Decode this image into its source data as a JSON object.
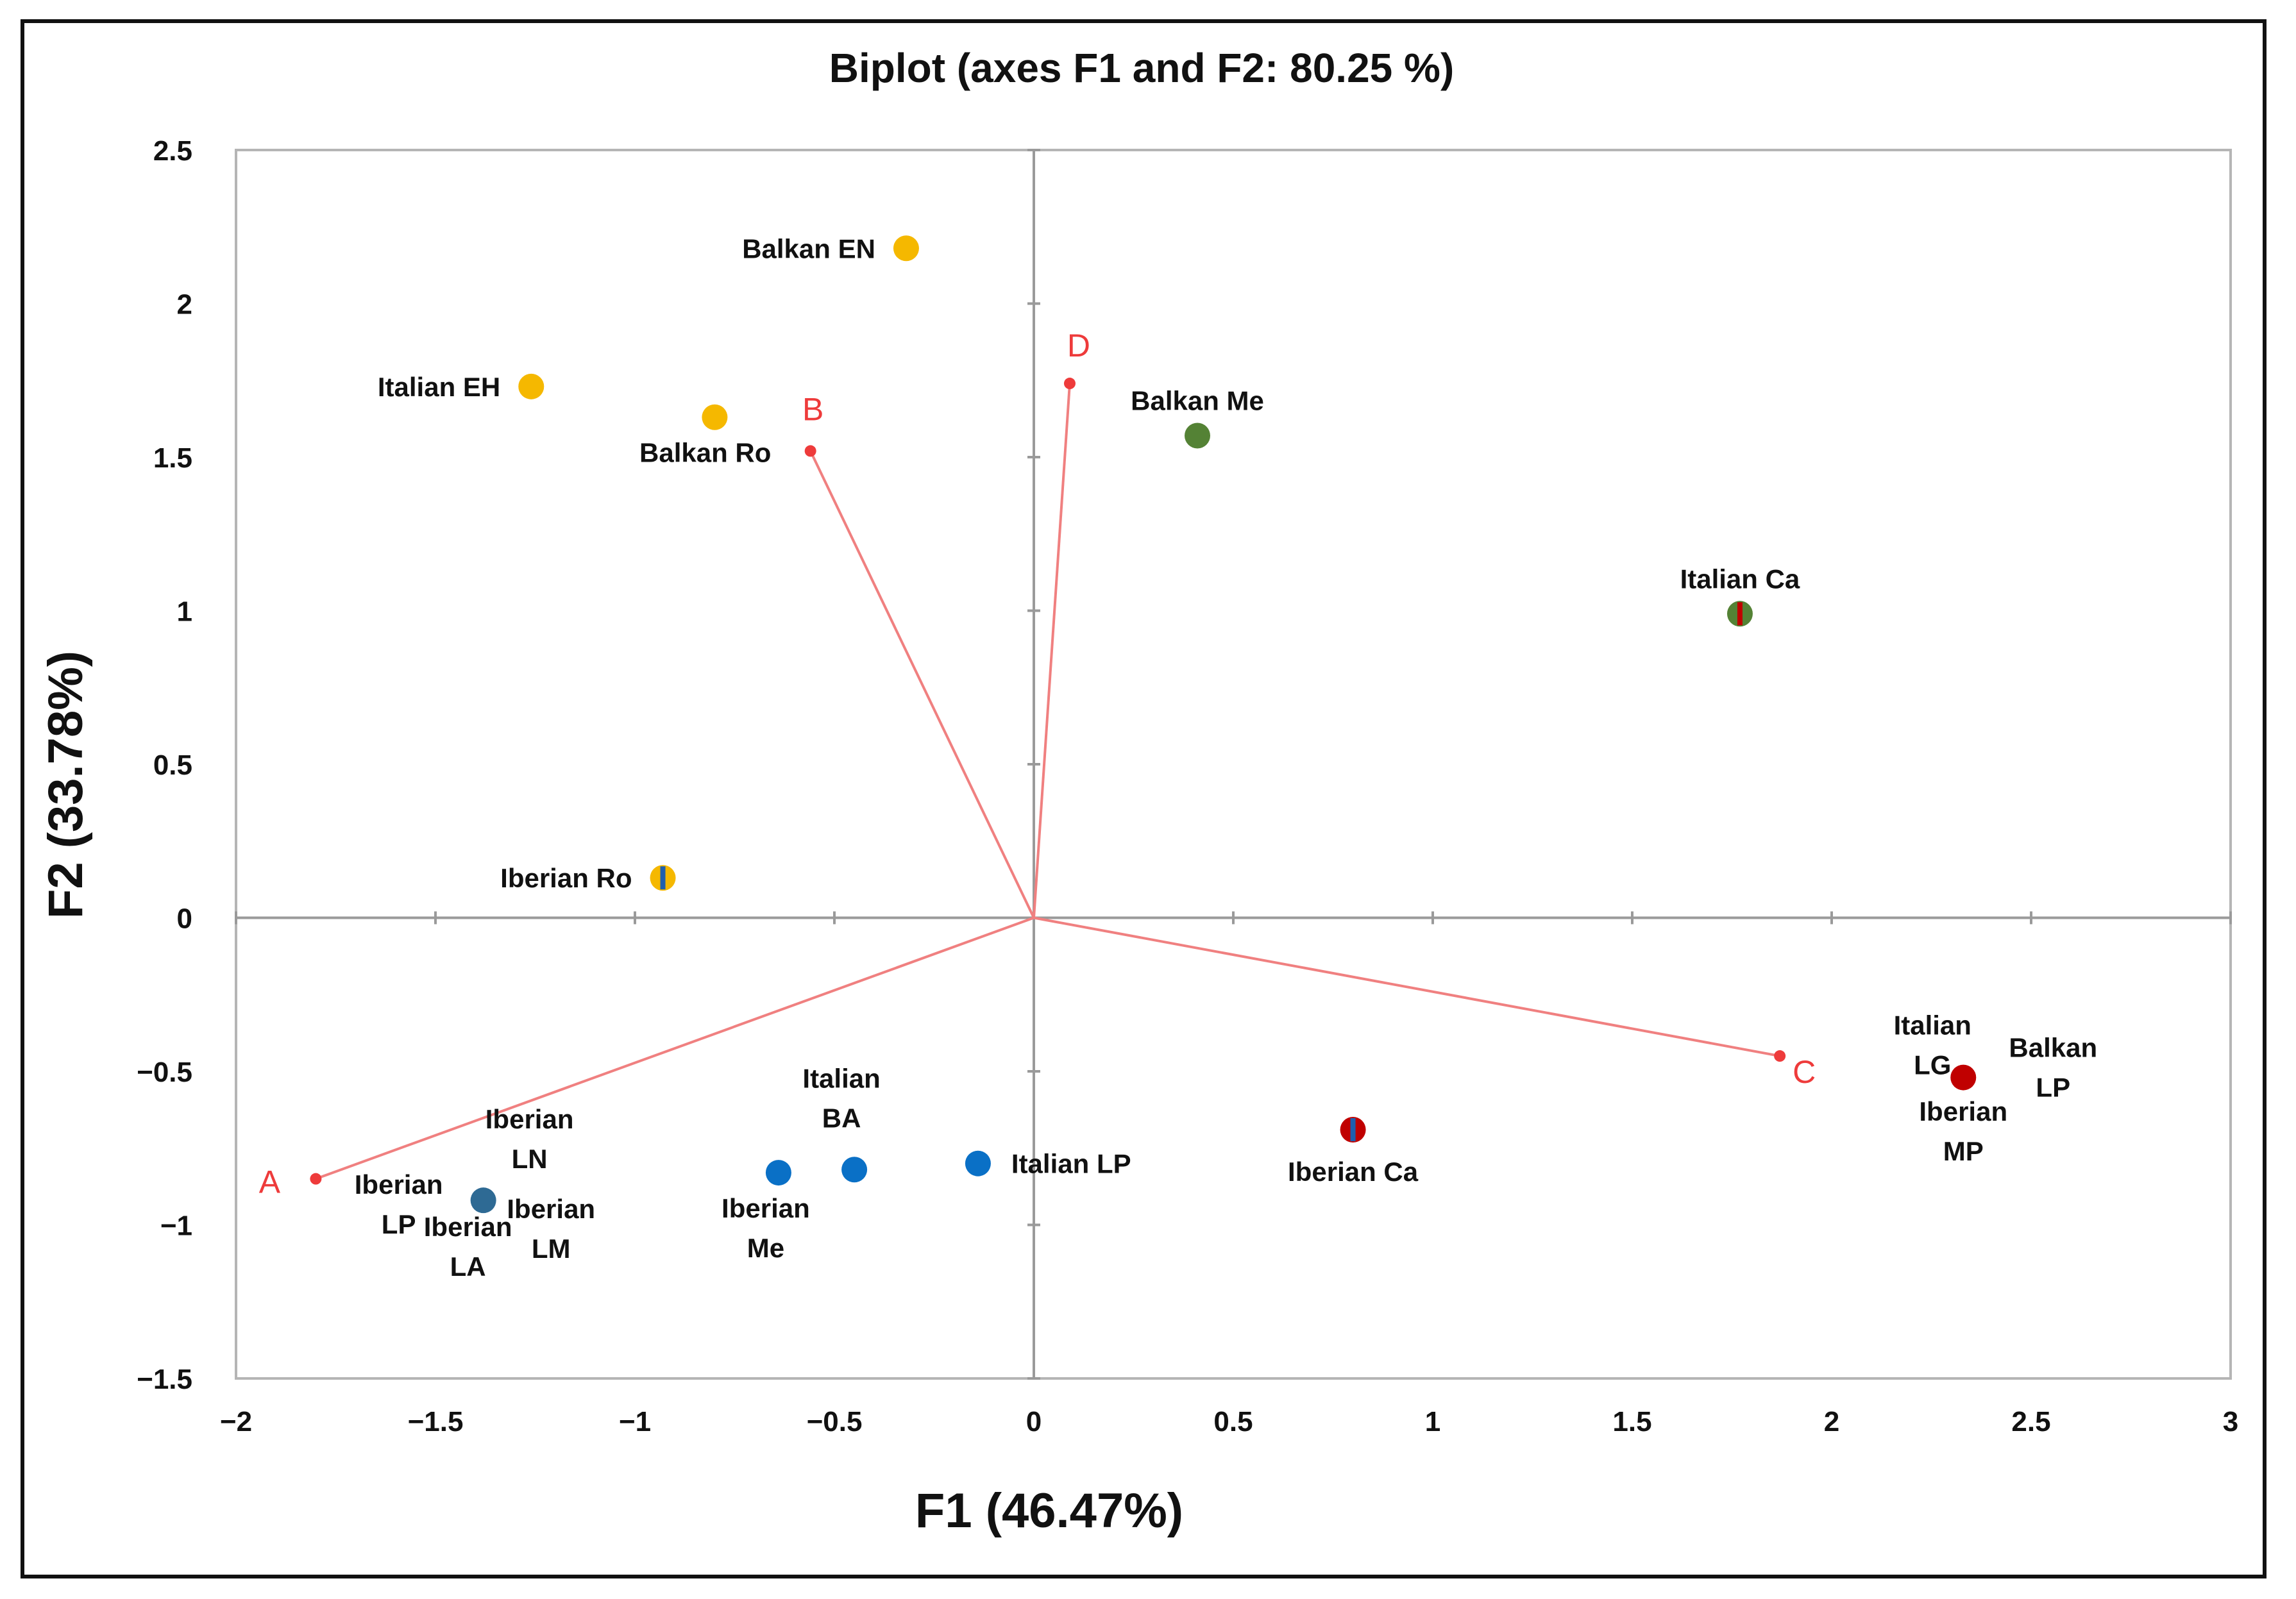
{
  "chart_data": {
    "type": "scatter",
    "title": "Biplot (axes F1 and F2: 80.25 %)",
    "xlabel": "F1 (46.47%)",
    "ylabel": "F2 (33.78%)",
    "xlim": [
      -2,
      3
    ],
    "ylim": [
      -1.5,
      2.5
    ],
    "xticks": [
      -2,
      -1.5,
      -1,
      -0.5,
      0,
      0.5,
      1,
      1.5,
      2,
      2.5,
      3
    ],
    "yticks": [
      -1.5,
      -1,
      -0.5,
      0,
      0.5,
      1,
      1.5,
      2,
      2.5
    ],
    "xtick_labels": [
      "−2",
      "−1.5",
      "−1",
      "−0.5",
      "0",
      "0.5",
      "1",
      "1.5",
      "2",
      "2.5",
      "3"
    ],
    "ytick_labels": [
      "−1.5",
      "−1",
      "−0.5",
      "0",
      "0.5",
      "1",
      "1.5",
      "2",
      "2.5"
    ],
    "grid": false,
    "vectors": [
      {
        "name": "A",
        "x": -1.8,
        "y": -0.85,
        "color": "#ee3b3b",
        "label_dir": "left"
      },
      {
        "name": "B",
        "x": -0.56,
        "y": 1.52,
        "color": "#ee3b3b",
        "label_dir": "up"
      },
      {
        "name": "C",
        "x": 1.87,
        "y": -0.45,
        "color": "#ee3b3b",
        "label_dir": "downright"
      },
      {
        "name": "D",
        "x": 0.09,
        "y": 1.74,
        "color": "#ee3b3b",
        "label_dir": "upright"
      }
    ],
    "points": [
      {
        "label": [
          "Balkan EN"
        ],
        "x": -0.32,
        "y": 2.18,
        "color": "#f5b800",
        "color2": null,
        "label_dir": "left"
      },
      {
        "label": [
          "Italian EH"
        ],
        "x": -1.26,
        "y": 1.73,
        "color": "#f5b800",
        "color2": null,
        "label_dir": "left"
      },
      {
        "label": [
          "Balkan Ro"
        ],
        "x": -0.8,
        "y": 1.63,
        "color": "#f5b800",
        "color2": null,
        "label_dir": "belowleft"
      },
      {
        "label": [
          "Balkan Me"
        ],
        "x": 0.41,
        "y": 1.57,
        "color": "#548235",
        "color2": null,
        "label_dir": "above"
      },
      {
        "label": [
          "Italian Ca"
        ],
        "x": 1.77,
        "y": 0.99,
        "color": "#548235",
        "color2": "#c00000",
        "label_dir": "above"
      },
      {
        "label": [
          "Iberian Ro"
        ],
        "x": -0.93,
        "y": 0.13,
        "color": "#f5b800",
        "color2": "#1f5fae",
        "label_dir": "left"
      },
      {
        "label": [
          "Iberian",
          "LP"
        ],
        "x": -1.38,
        "y": -0.92,
        "color": "#2e6a94",
        "color2": null,
        "label_dir": "custom"
      },
      {
        "label": [
          "Iberian",
          "Me"
        ],
        "x": -0.64,
        "y": -0.83,
        "color": "#0a70c6",
        "color2": null,
        "label_dir": "below"
      },
      {
        "label": [
          "Italian",
          "BA"
        ],
        "x": -0.45,
        "y": -0.82,
        "color": "#0a70c6",
        "color2": null,
        "label_dir": "above"
      },
      {
        "label": [
          "Italian LP"
        ],
        "x": -0.14,
        "y": -0.8,
        "color": "#0a70c6",
        "color2": null,
        "label_dir": "right"
      },
      {
        "label": [
          "Iberian Ca"
        ],
        "x": 0.8,
        "y": -0.69,
        "color": "#c00000",
        "color2": "#1f5fae",
        "label_dir": "below"
      },
      {
        "label": [
          "Balkan",
          "LP"
        ],
        "x": 2.33,
        "y": -0.52,
        "color": "#c00000",
        "color2": null,
        "label_dir": "custom"
      }
    ],
    "extra_labels": [
      {
        "label": [
          "Iberian",
          "LN"
        ],
        "near": "Iberian LP",
        "dx": 1.5,
        "dy": -2
      },
      {
        "label": [
          "Iberian",
          "LA"
        ],
        "near": "Iberian LP",
        "dx": -0.5,
        "dy": 1
      },
      {
        "label": [
          "Iberian",
          "LM"
        ],
        "near": "Iberian LP",
        "dx": 2.2,
        "dy": 0.5
      },
      {
        "label": [
          "Italian",
          "LG"
        ],
        "near": "Balkan LP",
        "dx": -1,
        "dy": -1.2
      },
      {
        "label": [
          "Iberian",
          "MP"
        ],
        "near": "Balkan LP",
        "dx": 0,
        "dy": 1.2
      }
    ]
  }
}
